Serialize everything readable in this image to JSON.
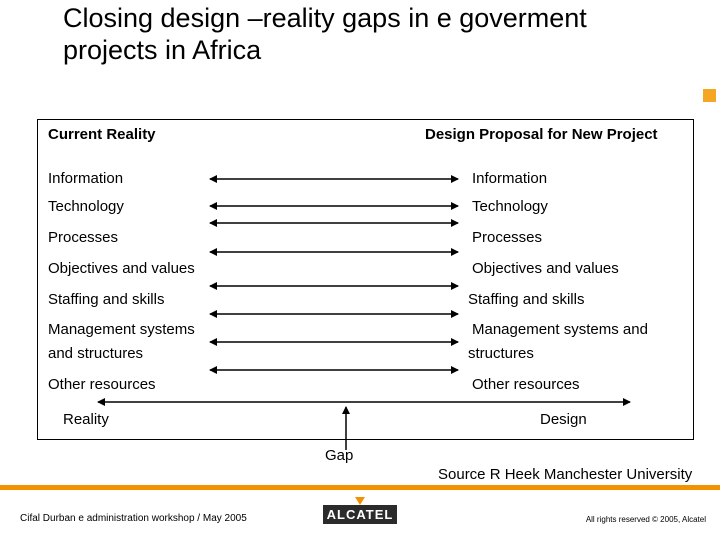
{
  "title": "Closing design –reality gaps in e goverment projects in Africa",
  "headers": {
    "left": "Current Reality",
    "right": "Design Proposal for New Project"
  },
  "rows": [
    {
      "left": "Information",
      "right": "Information"
    },
    {
      "left": "Technology",
      "right": "Technology"
    },
    {
      "left": "Processes",
      "right": "Processes"
    },
    {
      "left": "Objectives and values",
      "right": "Objectives and values"
    },
    {
      "left": "Staffing and skills",
      "right": "Staffing and skills"
    },
    {
      "left_line1": "Management systems",
      "left_line2": "and structures",
      "right_line1": "Management systems and",
      "right_line2": "structures"
    },
    {
      "left": "Other resources",
      "right": "Other resources"
    }
  ],
  "bottom": {
    "reality": "Reality",
    "design": "Design",
    "gap": "Gap"
  },
  "source": "Source R Heek Manchester University",
  "footer": {
    "left": "Cifal Durban e administration workshop   / May 2005",
    "logo": "ALCATEL",
    "right": "All rights reserved © 2005, Alcatel"
  },
  "colors": {
    "accent": "#f39200",
    "logo_bg": "#2b2b2b"
  }
}
